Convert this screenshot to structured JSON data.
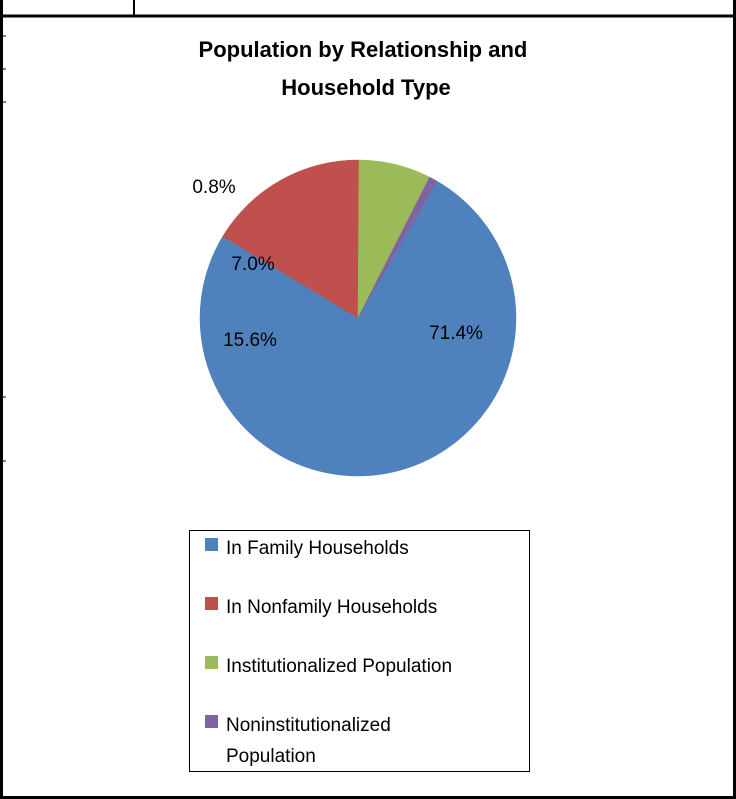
{
  "chart_data": {
    "type": "pie",
    "title_lines": [
      "Population by Relationship and",
      "Household Type"
    ],
    "slices": [
      {
        "label": "In Family Households",
        "value": 71.4,
        "display": "71.4%",
        "color": "#4F81BD"
      },
      {
        "label": "In Nonfamily Households",
        "value": 15.6,
        "display": "15.6%",
        "color": "#C0504D"
      },
      {
        "label": "Institutionalized Population",
        "value": 7.0,
        "display": "7.0%",
        "color": "#9BBB59"
      },
      {
        "label": "Noninstitutionalized Population",
        "value": 0.8,
        "display": "0.8%",
        "color": "#8064A2"
      }
    ],
    "legend_placement": "bottom"
  },
  "legend_lines": [
    [
      "In Family Households"
    ],
    [
      "In Nonfamily Households"
    ],
    [
      "Institutionalized Population"
    ],
    [
      "Noninstitutionalized",
      "Population"
    ]
  ]
}
